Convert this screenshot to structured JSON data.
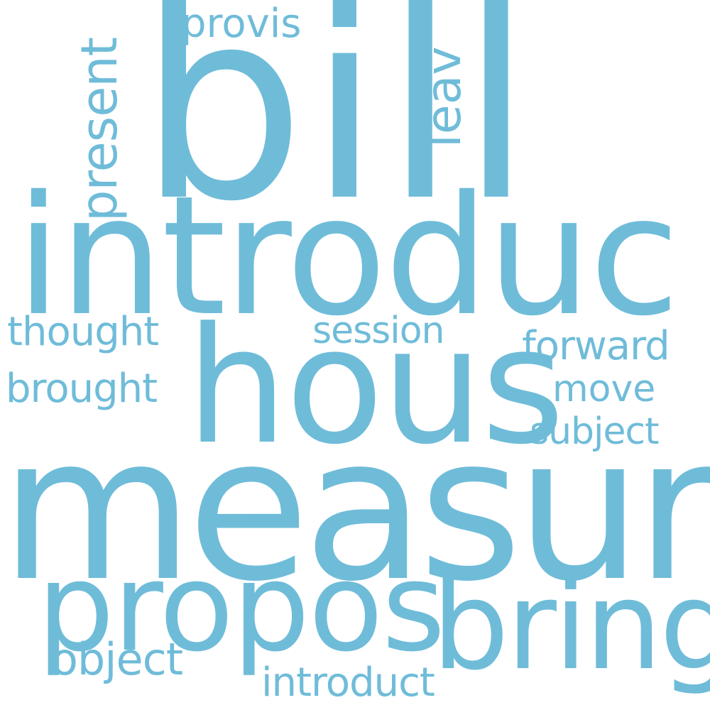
{
  "color": "#6fbcd9",
  "words": {
    "bill": "bill",
    "introduc": "introduc",
    "hous": "hous",
    "measur": "measur",
    "propos": "propos",
    "bring": "bring",
    "present": "present",
    "leav": "leav",
    "provis": "provis",
    "thought": "thought",
    "brought": "brought",
    "session": "session",
    "forward": "forward",
    "move": "move",
    "subject": "subject",
    "object": "object",
    "introduct": "introduct"
  }
}
